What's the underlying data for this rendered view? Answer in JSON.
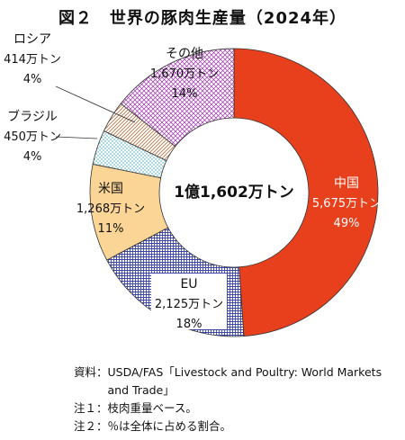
{
  "title": "図２　世界の豚肉生産量（2024年）",
  "chart_data": {
    "type": "pie",
    "title": "図２　世界の豚肉生産量（2024年）",
    "center_label": "1億1,602万トン",
    "unit": "万トン",
    "total": 11602,
    "slices": [
      {
        "name": "中国",
        "value_label": "5,675万トン",
        "value": 5675,
        "share_label": "49%",
        "share": 49,
        "color": "#E8401C",
        "pattern": "solid"
      },
      {
        "name": "EU",
        "value_label": "2,125万トン",
        "value": 2125,
        "share_label": "18%",
        "share": 18,
        "color": "#3B45A8",
        "pattern": "grid"
      },
      {
        "name": "米国",
        "value_label": "1,268万トン",
        "value": 1268,
        "share_label": "11%",
        "share": 11,
        "color": "#FAD596",
        "pattern": "solid"
      },
      {
        "name": "ブラジル",
        "value_label": "450万トン",
        "value": 450,
        "share_label": "4%",
        "share": 4,
        "color": "#2A9FB8",
        "pattern": "dots"
      },
      {
        "name": "ロシア",
        "value_label": "414万トン",
        "value": 414,
        "share_label": "4%",
        "share": 4,
        "color": "#B07040",
        "pattern": "diagonal"
      },
      {
        "name": "その他",
        "value_label": "1,670万トン",
        "value": 1670,
        "share_label": "14%",
        "share": 14,
        "color": "#9E2FB0",
        "pattern": "crosshatch"
      }
    ]
  },
  "notes": [
    {
      "key": "資料：",
      "text": "USDA/FAS「Livestock and Poultry: World Markets and Trade」"
    },
    {
      "key": "注１：",
      "text": "枝肉重量ベース。"
    },
    {
      "key": "注２：",
      "text": "％は全体に占める割合。"
    }
  ]
}
